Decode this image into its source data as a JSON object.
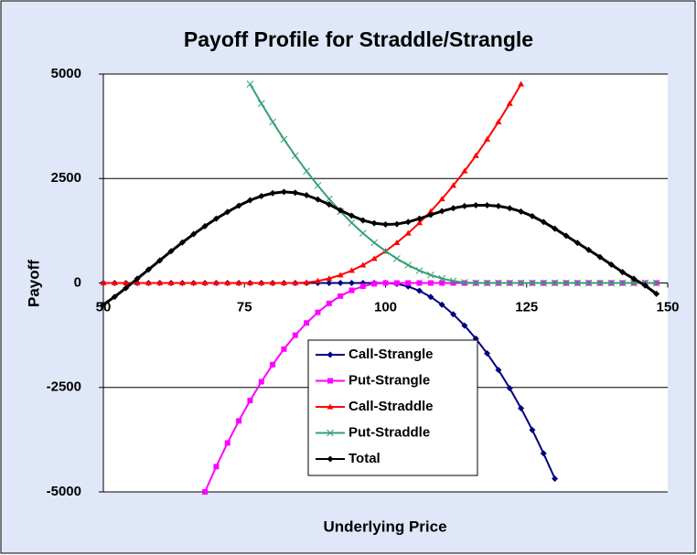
{
  "chart_data": {
    "type": "line",
    "title": "Payoff Profile for Straddle/Strangle",
    "x_label": "Underlying Price",
    "y_label": "Payoff",
    "x": [
      50,
      52,
      54,
      56,
      58,
      60,
      62,
      64,
      66,
      68,
      70,
      72,
      74,
      76,
      78,
      80,
      82,
      84,
      86,
      88,
      90,
      92,
      94,
      96,
      98,
      100,
      102,
      104,
      106,
      108,
      110,
      112,
      114,
      116,
      118,
      120,
      122,
      124,
      126,
      128,
      130,
      132,
      134,
      136,
      138,
      140,
      142,
      144,
      146,
      148
    ],
    "series": [
      {
        "name": "Call-Strangle",
        "color": "#000080",
        "marker": "diamond",
        "values": [
          0,
          0,
          0,
          0,
          0,
          0,
          0,
          0,
          0,
          0,
          0,
          0,
          0,
          0,
          0,
          0,
          0,
          0,
          0,
          0,
          0,
          0,
          0,
          0,
          0,
          0,
          -21,
          -83,
          -187,
          -333,
          -520,
          -749,
          -1020,
          -1332,
          -1686,
          -2081,
          -2518,
          -2997,
          -3517,
          -4079,
          -4683,
          null,
          null,
          null,
          null,
          null,
          null,
          null,
          null,
          null
        ]
      },
      {
        "name": "Put-Strangle",
        "color": "#ff00ff",
        "marker": "square",
        "values": [
          null,
          null,
          null,
          null,
          null,
          null,
          null,
          null,
          null,
          -5000,
          -4395,
          -3828,
          -3301,
          -2813,
          -2363,
          -1953,
          -1582,
          -1250,
          -957,
          -703,
          -488,
          -313,
          -176,
          -78,
          -20,
          0,
          0,
          0,
          0,
          0,
          0,
          0,
          0,
          0,
          0,
          0,
          0,
          0,
          0,
          0,
          0,
          0,
          0,
          0,
          0,
          0,
          0,
          0,
          0,
          0
        ]
      },
      {
        "name": "Call-Straddle",
        "color": "#ff0000",
        "marker": "triangle",
        "values": [
          0,
          0,
          0,
          0,
          0,
          0,
          0,
          0,
          0,
          0,
          0,
          0,
          0,
          0,
          0,
          0,
          0,
          0,
          12,
          48,
          107,
          190,
          297,
          428,
          583,
          761,
          964,
          1190,
          1440,
          1713,
          2011,
          2332,
          2677,
          3046,
          3438,
          3855,
          4295,
          4759,
          null,
          null,
          null,
          null,
          null,
          null,
          null,
          null,
          null,
          null,
          null,
          null
        ]
      },
      {
        "name": "Put-Straddle",
        "color": "#33a070",
        "marker": "x",
        "values": [
          null,
          null,
          null,
          null,
          null,
          null,
          null,
          null,
          null,
          null,
          null,
          null,
          null,
          4759,
          4295,
          3855,
          3438,
          3046,
          2677,
          2332,
          2011,
          1713,
          1440,
          1190,
          964,
          761,
          583,
          428,
          297,
          190,
          107,
          48,
          12,
          0,
          0,
          0,
          0,
          0,
          0,
          0,
          0,
          0,
          0,
          0,
          0,
          0,
          0,
          0,
          0,
          0
        ]
      },
      {
        "name": "Total",
        "color": "#000000",
        "marker": "diamond",
        "values": [
          -520,
          -330,
          -120,
          100,
          320,
          540,
          760,
          970,
          1170,
          1360,
          1540,
          1700,
          1850,
          1980,
          2080,
          2150,
          2180,
          2160,
          2100,
          2000,
          1880,
          1740,
          1610,
          1500,
          1430,
          1400,
          1410,
          1460,
          1540,
          1630,
          1720,
          1790,
          1840,
          1860,
          1860,
          1840,
          1790,
          1710,
          1600,
          1460,
          1300,
          1130,
          960,
          790,
          620,
          440,
          260,
          100,
          -60,
          -260
        ]
      }
    ],
    "xlim": [
      50,
      150
    ],
    "xticks": [
      50,
      75,
      100,
      125,
      150
    ],
    "ylim": [
      -5000,
      5000
    ],
    "yticks": [
      -5000,
      -2500,
      0,
      2500,
      5000
    ],
    "grid": true
  }
}
